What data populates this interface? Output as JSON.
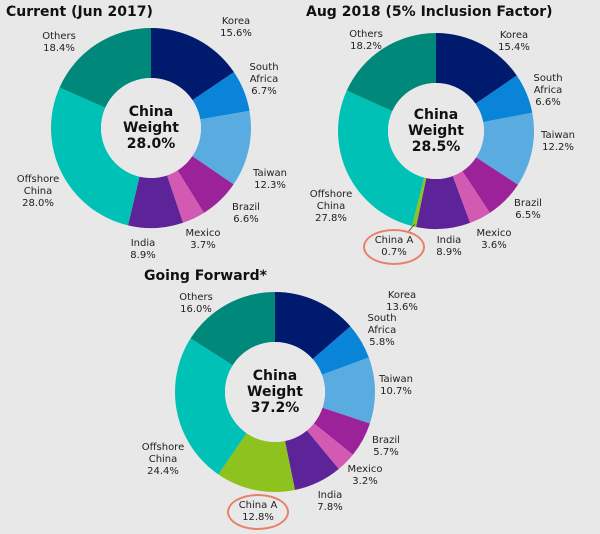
{
  "chart_data": [
    {
      "type": "pie",
      "title": "Current (Jun 2017)",
      "center_label": [
        "China",
        "Weight",
        "28.0%"
      ],
      "slices": [
        {
          "label": "Korea",
          "value": 15.6,
          "color": "#001a6e"
        },
        {
          "label": "South Africa",
          "value": 6.7,
          "color": "#0a84d8"
        },
        {
          "label": "Taiwan",
          "value": 12.3,
          "color": "#5aace0"
        },
        {
          "label": "Brazil",
          "value": 6.6,
          "color": "#9c2299"
        },
        {
          "label": "Mexico",
          "value": 3.7,
          "color": "#d35ab3"
        },
        {
          "label": "India",
          "value": 8.9,
          "color": "#5d2399"
        },
        {
          "label": "Offshore China",
          "value": 28.0,
          "color": "#00c1b5"
        },
        {
          "label": "Others",
          "value": 18.4,
          "color": "#00897b"
        }
      ]
    },
    {
      "type": "pie",
      "title": "Aug 2018 (5% Inclusion Factor)",
      "center_label": [
        "China",
        "Weight",
        "28.5%"
      ],
      "highlight": "China A",
      "slices": [
        {
          "label": "Korea",
          "value": 15.4,
          "color": "#001a6e"
        },
        {
          "label": "South Africa",
          "value": 6.6,
          "color": "#0a84d8"
        },
        {
          "label": "Taiwan",
          "value": 12.2,
          "color": "#5aace0"
        },
        {
          "label": "Brazil",
          "value": 6.5,
          "color": "#9c2299"
        },
        {
          "label": "Mexico",
          "value": 3.6,
          "color": "#d35ab3"
        },
        {
          "label": "India",
          "value": 8.9,
          "color": "#5d2399"
        },
        {
          "label": "China A",
          "value": 0.7,
          "color": "#8dc21f"
        },
        {
          "label": "Offshore China",
          "value": 27.8,
          "color": "#00c1b5"
        },
        {
          "label": "Others",
          "value": 18.2,
          "color": "#00897b"
        }
      ]
    },
    {
      "type": "pie",
      "title": "Going Forward*",
      "center_label": [
        "China",
        "Weight",
        "37.2%"
      ],
      "highlight": "China A",
      "slices": [
        {
          "label": "Korea",
          "value": 13.6,
          "color": "#001a6e"
        },
        {
          "label": "South Africa",
          "value": 5.8,
          "color": "#0a84d8"
        },
        {
          "label": "Taiwan",
          "value": 10.7,
          "color": "#5aace0"
        },
        {
          "label": "Brazil",
          "value": 5.7,
          "color": "#9c2299"
        },
        {
          "label": "Mexico",
          "value": 3.2,
          "color": "#d35ab3"
        },
        {
          "label": "India",
          "value": 7.8,
          "color": "#5d2399"
        },
        {
          "label": "China A",
          "value": 12.8,
          "color": "#8dc21f"
        },
        {
          "label": "Offshore China",
          "value": 24.4,
          "color": "#00c1b5"
        },
        {
          "label": "Others",
          "value": 16.0,
          "color": "#00897b"
        }
      ]
    }
  ]
}
